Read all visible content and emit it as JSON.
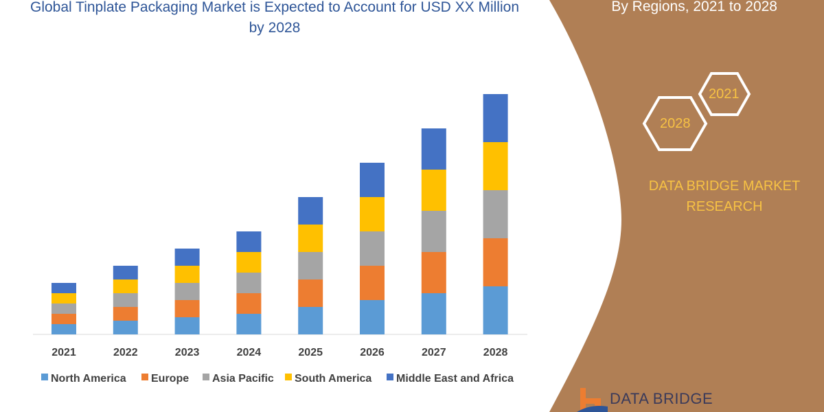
{
  "chart_data": {
    "type": "bar",
    "stacked": true,
    "title": "Global Tinplate Packaging Market is Expected to Account for USD XX Million by 2028",
    "categories": [
      "2021",
      "2022",
      "2023",
      "2024",
      "2025",
      "2026",
      "2027",
      "2028"
    ],
    "series": [
      {
        "name": "North America",
        "color": "#5B9BD5",
        "values": [
          15,
          20,
          25,
          30,
          40,
          50,
          60,
          70
        ]
      },
      {
        "name": "Europe",
        "color": "#ED7D31",
        "values": [
          15,
          20,
          25,
          30,
          40,
          50,
          60,
          70
        ]
      },
      {
        "name": "Asia Pacific",
        "color": "#A5A5A5",
        "values": [
          15,
          20,
          25,
          30,
          40,
          50,
          60,
          70
        ]
      },
      {
        "name": "South America",
        "color": "#FFC000",
        "values": [
          15,
          20,
          25,
          30,
          40,
          50,
          60,
          70
        ]
      },
      {
        "name": "Middle East and Africa",
        "color": "#4472C4",
        "values": [
          15,
          20,
          25,
          30,
          40,
          50,
          60,
          70
        ]
      }
    ],
    "yaxis_visible": false,
    "grid": false,
    "legend": "bottom"
  },
  "side_panel": {
    "subtitle": "By Regions, 2021 to 2028",
    "hex_labels": [
      "2021",
      "2028"
    ],
    "brand": "DATA BRIDGE MARKET RESEARCH",
    "logo_text": "DATA BRIDGE",
    "panel_color": "#B07F55",
    "accent_color": "#F7C244"
  }
}
